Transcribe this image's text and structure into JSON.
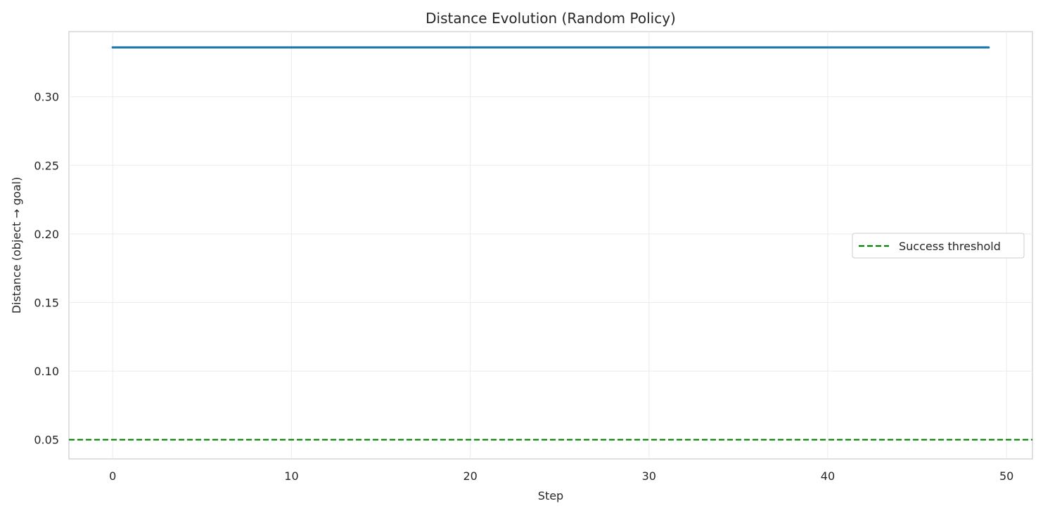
{
  "chart_data": {
    "type": "line",
    "title": "Distance Evolution (Random Policy)",
    "xlabel": "Step",
    "ylabel": "Distance (object → goal)",
    "xlim": [
      -2.45,
      51.45
    ],
    "ylim": [
      0.036,
      0.3475
    ],
    "x_ticks": [
      0,
      10,
      20,
      30,
      40,
      50
    ],
    "x_tick_labels": [
      "0",
      "10",
      "20",
      "30",
      "40",
      "50"
    ],
    "y_ticks": [
      0.05,
      0.1,
      0.15,
      0.2,
      0.25,
      0.3
    ],
    "y_tick_labels": [
      "0.05",
      "0.10",
      "0.15",
      "0.20",
      "0.25",
      "0.30"
    ],
    "grid": true,
    "legend_position": "center-right",
    "series": [
      {
        "color": "#1f77b4",
        "x": [
          0,
          49
        ],
        "y": [
          0.336,
          0.336
        ]
      }
    ],
    "reference_lines": [
      {
        "name": "Success threshold",
        "orientation": "horizontal",
        "y": 0.05,
        "style": "dashed",
        "color": "#008000"
      }
    ]
  }
}
